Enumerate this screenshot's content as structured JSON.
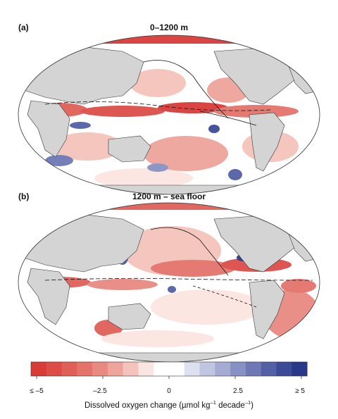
{
  "panels": [
    {
      "letter": "(a)",
      "title": "0–1200 m"
    },
    {
      "letter": "(b)",
      "title": "1200 m – sea floor"
    }
  ],
  "colorbar": {
    "colors": [
      "#d83c39",
      "#dc4d48",
      "#e05f59",
      "#e4736c",
      "#e98a82",
      "#eea49b",
      "#f4c3bb",
      "#fbe5e1",
      "#ffffff",
      "#ffffff",
      "#dde0ee",
      "#c0c6e1",
      "#a4acd3",
      "#8891c4",
      "#6d78b5",
      "#5360a6",
      "#3c4b98",
      "#28398c"
    ],
    "tick_labels": [
      "≤ –5",
      "–2.5",
      "0",
      "2.5",
      "≥ 5"
    ],
    "title_main": "Dissolved oxygen change (µmol kg",
    "title_sup1": "–1",
    "title_mid": " decade",
    "title_sup2": "–1",
    "title_end": ")"
  },
  "map_colors": {
    "land": "#d4d4d4",
    "ocean": "#ffffff",
    "outline": "#333333"
  }
}
